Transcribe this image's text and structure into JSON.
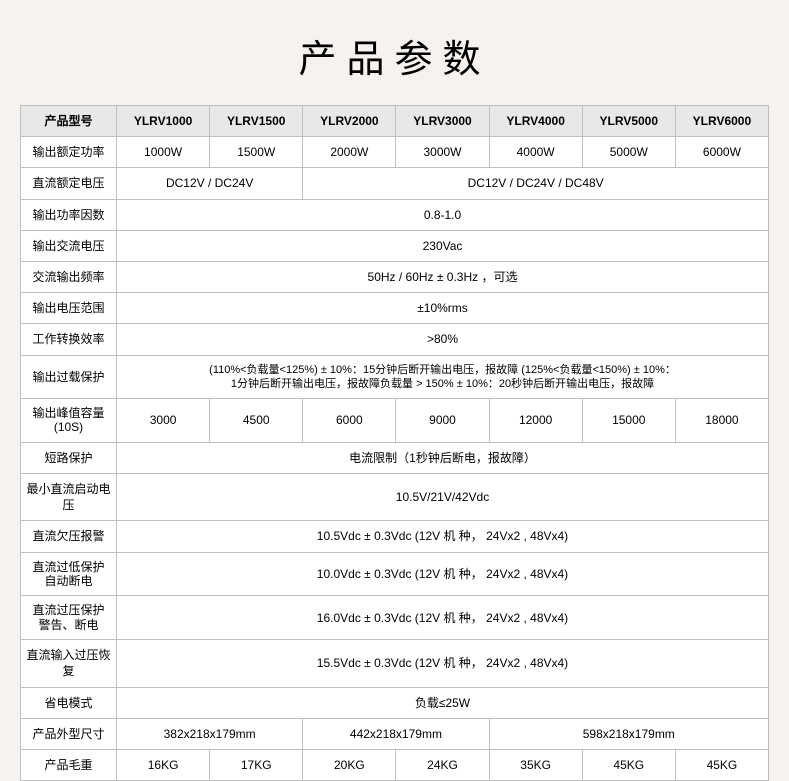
{
  "title": "产品参数",
  "header": {
    "model_label": "产品型号",
    "models": [
      "YLRV1000",
      "YLRV1500",
      "YLRV2000",
      "YLRV3000",
      "YLRV4000",
      "YLRV5000",
      "YLRV6000"
    ]
  },
  "rows": {
    "rated_power": {
      "label": "输出额定功率",
      "values": [
        "1000W",
        "1500W",
        "2000W",
        "3000W",
        "4000W",
        "5000W",
        "6000W"
      ]
    },
    "dc_voltage": {
      "label": "直流额定电压",
      "span2": "DC12V / DC24V",
      "span5": "DC12V / DC24V / DC48V"
    },
    "power_factor": {
      "label": "输出功率因数",
      "value": "0.8-1.0"
    },
    "ac_voltage": {
      "label": "输出交流电压",
      "value": "230Vac"
    },
    "ac_freq": {
      "label": "交流输出频率",
      "value": "50Hz / 60Hz ± 0.3Hz ，可选"
    },
    "voltage_range": {
      "label": "输出电压范围",
      "value": "±10%rms"
    },
    "efficiency": {
      "label": "工作转换效率",
      "value": ">80%"
    },
    "overload": {
      "label": "输出过载保护",
      "value": "(110%<负载量<125%) ± 10%：15分钟后断开输出电压，报故障 (125%<负载量<150%) ± 10%：\n1分钟后断开输出电压，报故障负载量 > 150% ± 10%：20秒钟后断开输出电压，报故障"
    },
    "peak": {
      "label": "输出峰值容量\n(10S)",
      "values": [
        "3000",
        "4500",
        "6000",
        "9000",
        "12000",
        "15000",
        "18000"
      ]
    },
    "short": {
      "label": "短路保护",
      "value": "电流限制（1秒钟后断电，报故障）"
    },
    "min_dc": {
      "label": "最小直流启动电压",
      "value": "10.5V/21V/42Vdc"
    },
    "dc_low_alarm": {
      "label": "直流欠压报警",
      "value": "10.5Vdc ± 0.3Vdc (12V 机 种， 24Vx2 , 48Vx4)"
    },
    "dc_low_cut": {
      "label": "直流过低保护\n自动断电",
      "value": "10.0Vdc ± 0.3Vdc (12V 机 种， 24Vx2 , 48Vx4)"
    },
    "dc_over_alarm": {
      "label": "直流过压保护\n警告、断电",
      "value": "16.0Vdc ± 0.3Vdc (12V 机 种， 24Vx2 , 48Vx4)"
    },
    "dc_over_recover": {
      "label": "直流输入过压恢复",
      "value": "15.5Vdc ± 0.3Vdc (12V 机 种， 24Vx2 , 48Vx4)"
    },
    "eco": {
      "label": "省电模式",
      "value": "负载≤25W"
    },
    "size": {
      "label": "产品外型尺寸",
      "span_a": "382x218x179mm",
      "span_b": "442x218x179mm",
      "span_c": "598x218x179mm"
    },
    "weight": {
      "label": "产品毛重",
      "values": [
        "16KG",
        "17KG",
        "20KG",
        "24KG",
        "35KG",
        "45KG",
        "45KG"
      ]
    }
  },
  "style": {
    "bg": "#f5f2ef",
    "border": "#bfbfbf",
    "header_bg": "#e8e8e8",
    "title_fontsize": 38,
    "cell_fontsize": 12
  }
}
